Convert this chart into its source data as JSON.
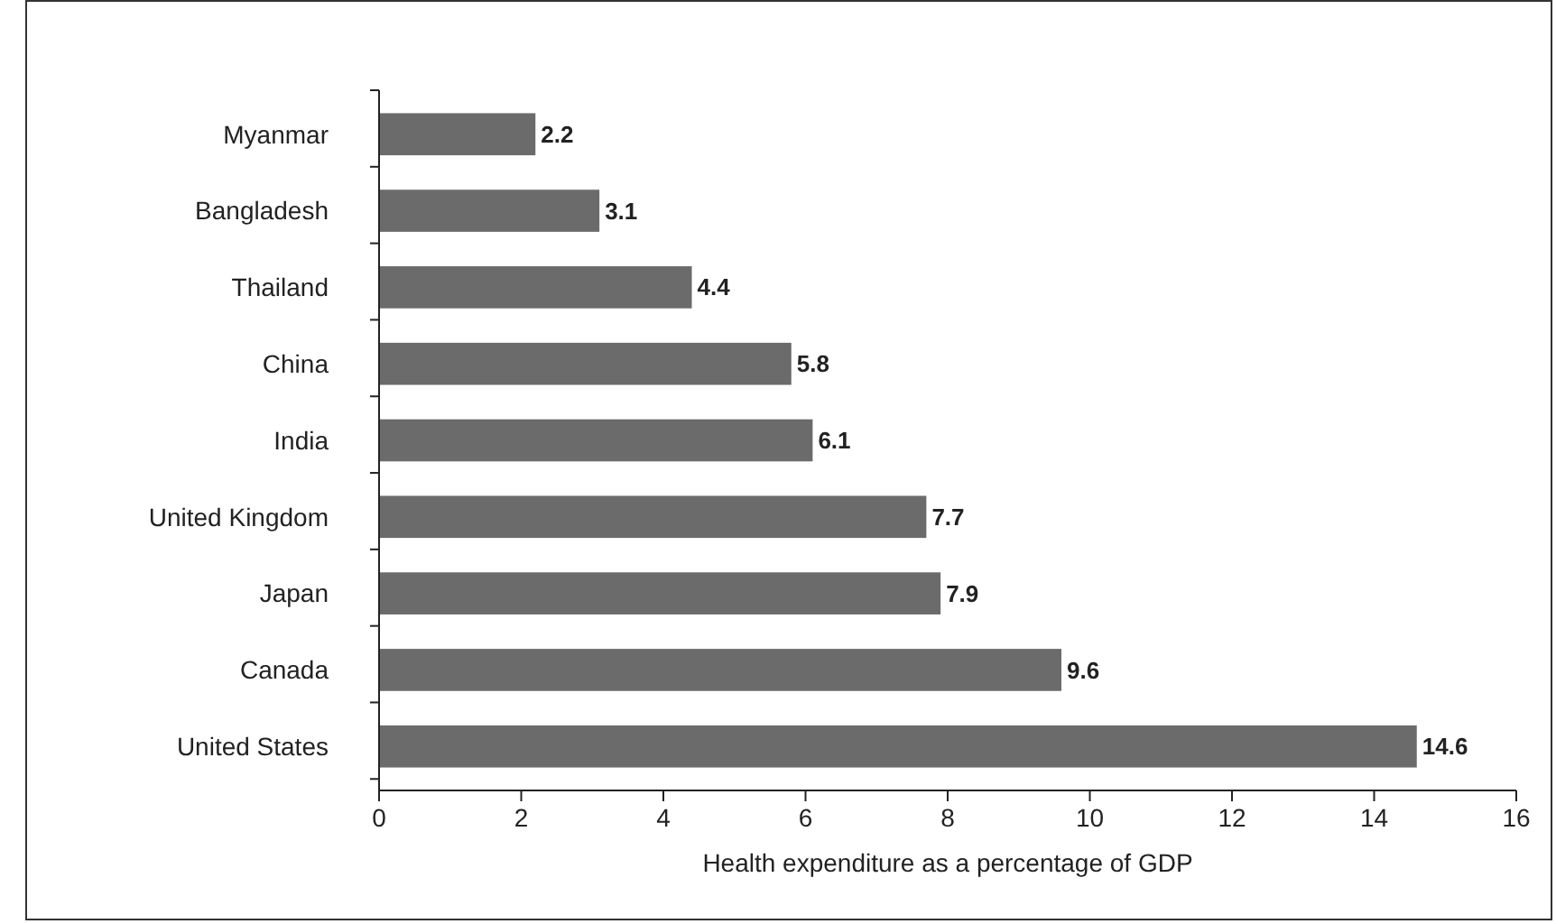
{
  "chart_data": {
    "type": "bar",
    "orientation": "horizontal",
    "xlabel": "Health expenditure as a percentage of GDP",
    "categories": [
      "Myanmar",
      "Bangladesh",
      "Thailand",
      "China",
      "India",
      "United Kingdom",
      "Japan",
      "Canada",
      "United States"
    ],
    "values": [
      2.2,
      3.1,
      4.4,
      5.8,
      6.1,
      7.7,
      7.9,
      9.6,
      14.6
    ],
    "color": "#6b6b6b",
    "xlim": [
      0,
      16
    ],
    "xticks": [
      0,
      2,
      4,
      6,
      8,
      10,
      12,
      14,
      16
    ],
    "data_labels": true,
    "grid": false
  }
}
